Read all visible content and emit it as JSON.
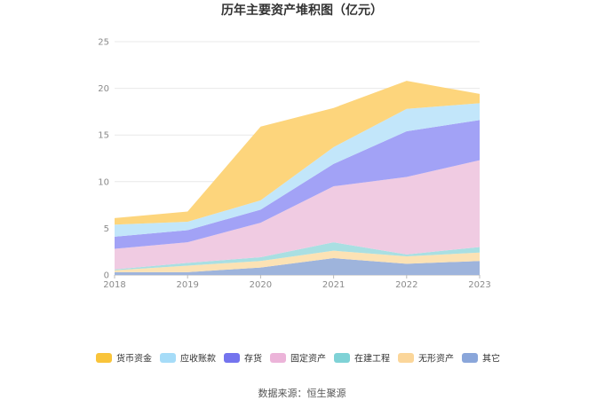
{
  "chart_data": {
    "type": "area",
    "stacked": true,
    "title": "历年主要资产堆积图（亿元）",
    "source": "数据来源：恒生聚源",
    "categories": [
      "2018",
      "2019",
      "2020",
      "2021",
      "2022",
      "2023"
    ],
    "ylim": [
      0,
      25
    ],
    "yticks": [
      "0",
      "5",
      "10",
      "15",
      "20",
      "25"
    ],
    "grid": true,
    "legend_position": "bottom",
    "series": [
      {
        "name": "其它",
        "color": "#9eb4dc",
        "values": [
          0.3,
          0.3,
          0.8,
          1.8,
          1.2,
          1.5
        ]
      },
      {
        "name": "无形资产",
        "color": "#fce2b4",
        "values": [
          0.2,
          0.7,
          0.7,
          0.8,
          0.8,
          0.9
        ]
      },
      {
        "name": "在建工程",
        "color": "#a9dfe2",
        "values": [
          0.1,
          0.3,
          0.4,
          0.9,
          0.2,
          0.6
        ]
      },
      {
        "name": "固定资产",
        "color": "#f0cbe2",
        "values": [
          2.2,
          2.2,
          3.7,
          6.0,
          8.3,
          9.3
        ]
      },
      {
        "name": "存货",
        "color": "#a2a2f6",
        "values": [
          1.3,
          1.3,
          1.4,
          2.4,
          4.9,
          4.3
        ]
      },
      {
        "name": "应收账款",
        "color": "#c2e6fa",
        "values": [
          1.3,
          0.9,
          1.0,
          1.8,
          2.4,
          1.8
        ]
      },
      {
        "name": "货币资金",
        "color": "#fdd57c",
        "values": [
          0.7,
          1.1,
          7.9,
          4.2,
          3.0,
          1.0
        ]
      }
    ],
    "legend": [
      {
        "name": "货币资金",
        "color": "#f9c43a"
      },
      {
        "name": "应收账款",
        "color": "#a6dcf8"
      },
      {
        "name": "存货",
        "color": "#7474ee"
      },
      {
        "name": "固定资产",
        "color": "#ecb4d9"
      },
      {
        "name": "在建工程",
        "color": "#7fd2d6"
      },
      {
        "name": "无形资产",
        "color": "#fbd69a"
      },
      {
        "name": "其它",
        "color": "#8aa6da"
      }
    ]
  }
}
